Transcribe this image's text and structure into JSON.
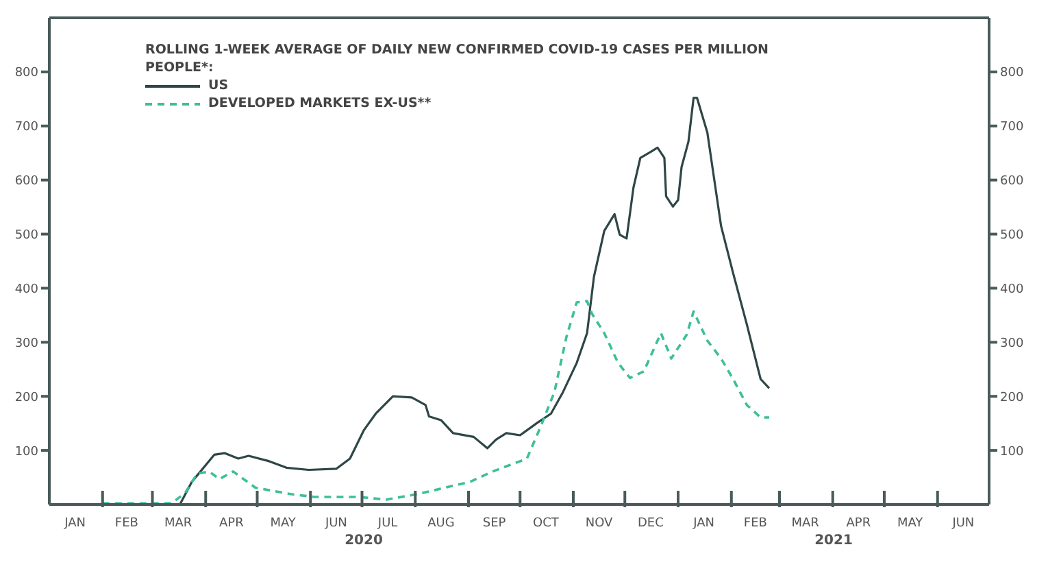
{
  "chart_data": {
    "type": "line",
    "legend_title": "ROLLING 1-WEEK AVERAGE OF DAILY NEW CONFIRMED COVID-19 CASES PER MILLION PEOPLE*:",
    "legend": "top left",
    "series": [
      {
        "name": "US",
        "color": "#2e4646",
        "line_style": "solid",
        "x": [
          "2020-02-01",
          "2020-03-06",
          "2020-03-17",
          "2020-03-24",
          "2020-04-06",
          "2020-04-12",
          "2020-04-20",
          "2020-04-26",
          "2020-05-08",
          "2020-05-18",
          "2020-05-31",
          "2020-06-16",
          "2020-06-24",
          "2020-07-02",
          "2020-07-09",
          "2020-07-19",
          "2020-07-30",
          "2020-08-07",
          "2020-08-09",
          "2020-08-16",
          "2020-08-23",
          "2020-09-04",
          "2020-09-12",
          "2020-09-17",
          "2020-09-23",
          "2020-10-01",
          "2020-10-11",
          "2020-10-19",
          "2020-10-26",
          "2020-11-03",
          "2020-11-09",
          "2020-11-13",
          "2020-11-19",
          "2020-11-25",
          "2020-11-28",
          "2020-12-02",
          "2020-12-06",
          "2020-12-10",
          "2020-12-16",
          "2020-12-20",
          "2020-12-24",
          "2020-12-25",
          "2020-12-29",
          "2021-01-01",
          "2021-01-03",
          "2021-01-07",
          "2021-01-10",
          "2021-01-12",
          "2021-01-18",
          "2021-01-26",
          "2021-02-02",
          "2021-02-10",
          "2021-02-18",
          "2021-02-23"
        ],
        "values": [
          0,
          0,
          0,
          42,
          92,
          95,
          85,
          90,
          80,
          68,
          64,
          66,
          85,
          137,
          168,
          200,
          198,
          184,
          163,
          156,
          132,
          125,
          104,
          120,
          132,
          128,
          151,
          168,
          208,
          262,
          317,
          421,
          506,
          537,
          499,
          492,
          586,
          641,
          652,
          660,
          641,
          570,
          551,
          563,
          624,
          671,
          752,
          752,
          688,
          515,
          428,
          333,
          232,
          215
        ]
      },
      {
        "name": "DEVELOPED MARKETS EX-US**",
        "color": "#3cbf98",
        "line_style": "dashed",
        "x": [
          "2020-02-01",
          "2020-02-28",
          "2020-03-12",
          "2020-03-20",
          "2020-03-27",
          "2020-04-03",
          "2020-04-09",
          "2020-04-17",
          "2020-04-30",
          "2020-05-21",
          "2020-06-03",
          "2020-06-29",
          "2020-07-15",
          "2020-08-02",
          "2020-09-02",
          "2020-09-15",
          "2020-10-01",
          "2020-10-05",
          "2020-10-13",
          "2020-10-21",
          "2020-10-28",
          "2020-11-03",
          "2020-11-09",
          "2020-11-12",
          "2020-11-19",
          "2020-11-27",
          "2020-12-04",
          "2020-12-12",
          "2020-12-22",
          "2020-12-28",
          "2021-01-06",
          "2021-01-10",
          "2021-01-18",
          "2021-01-26",
          "2021-02-02",
          "2021-02-10",
          "2021-02-18",
          "2021-02-23"
        ],
        "values": [
          2,
          2,
          2,
          21,
          57,
          61,
          47,
          61,
          31,
          19,
          14,
          14,
          9,
          19,
          42,
          61,
          80,
          85,
          144,
          208,
          310,
          374,
          376,
          352,
          317,
          262,
          234,
          246,
          317,
          270,
          314,
          357,
          303,
          270,
          232,
          184,
          161,
          161
        ]
      }
    ],
    "xlim": [
      "2020-01-01",
      "2021-07-01"
    ],
    "xticks": [
      {
        "value": "2020-01-16",
        "label": "JAN"
      },
      {
        "value": "2020-02-01",
        "label": null
      },
      {
        "value": "2020-02-15",
        "label": "FEB"
      },
      {
        "value": "2020-03-01",
        "label": null
      },
      {
        "value": "2020-03-16",
        "label": "MAR"
      },
      {
        "value": "2020-04-01",
        "label": null
      },
      {
        "value": "2020-04-16",
        "label": "APR"
      },
      {
        "value": "2020-05-01",
        "label": null
      },
      {
        "value": "2020-05-16",
        "label": "MAY"
      },
      {
        "value": "2020-06-01",
        "label": null
      },
      {
        "value": "2020-06-16",
        "label": "JUN"
      },
      {
        "value": "2020-07-01",
        "label": null
      },
      {
        "value": "2020-07-16",
        "label": "JUL"
      },
      {
        "value": "2020-08-01",
        "label": null
      },
      {
        "value": "2020-08-16",
        "label": "AUG"
      },
      {
        "value": "2020-09-01",
        "label": null
      },
      {
        "value": "2020-09-16",
        "label": "SEP"
      },
      {
        "value": "2020-10-01",
        "label": null
      },
      {
        "value": "2020-10-16",
        "label": "OCT"
      },
      {
        "value": "2020-11-01",
        "label": null
      },
      {
        "value": "2020-11-16",
        "label": "NOV"
      },
      {
        "value": "2020-12-01",
        "label": null
      },
      {
        "value": "2020-12-16",
        "label": "DEC"
      },
      {
        "value": "2021-01-01",
        "label": null
      },
      {
        "value": "2021-01-16",
        "label": "JAN"
      },
      {
        "value": "2021-02-01",
        "label": null
      },
      {
        "value": "2021-02-15",
        "label": "FEB"
      },
      {
        "value": "2021-03-01",
        "label": null
      },
      {
        "value": "2021-03-16",
        "label": "MAR"
      },
      {
        "value": "2021-04-01",
        "label": null
      },
      {
        "value": "2021-04-16",
        "label": "APR"
      },
      {
        "value": "2021-05-01",
        "label": null
      },
      {
        "value": "2021-05-16",
        "label": "MAY"
      },
      {
        "value": "2021-06-01",
        "label": null
      },
      {
        "value": "2021-06-16",
        "label": "JUN"
      }
    ],
    "ylim": [
      0,
      900
    ],
    "yticks": [
      100,
      200,
      300,
      400,
      500,
      600,
      700,
      800
    ],
    "y2lim": [
      0,
      900
    ],
    "y2ticks": [
      100,
      200,
      300,
      400,
      500,
      600,
      700,
      800
    ],
    "annotations": [
      "2020",
      "2021"
    ]
  }
}
